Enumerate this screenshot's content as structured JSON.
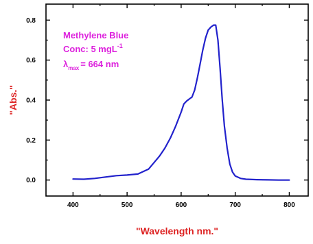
{
  "chart_data": {
    "type": "line",
    "title": "",
    "xlabel": "\"Wavelength nm.\"",
    "ylabel": "\"Abs.\"",
    "xlim": [
      350,
      835
    ],
    "ylim": [
      -0.08,
      0.88
    ],
    "x_ticks": [
      400,
      500,
      600,
      700,
      800
    ],
    "y_ticks": [
      0.0,
      0.2,
      0.4,
      0.6,
      0.8
    ],
    "x_tick_labels": [
      "400",
      "500",
      "600",
      "700",
      "800"
    ],
    "y_tick_labels": [
      "0.0",
      "0.2",
      "0.4",
      "0.6",
      "0.8"
    ],
    "grid": false,
    "annotation": {
      "line1": "Methylene Blue",
      "line2": "Conc: 5 mgL",
      "line2_sup": "-1",
      "line3_prefix": "λ",
      "line3_sub": "max",
      "line3_suffix": "= 664 nm"
    },
    "colors": {
      "line": "#2222cc",
      "label": "#dd2222",
      "annotation": "#dd22dd"
    },
    "series": [
      {
        "x": [
          400,
          420,
          440,
          460,
          480,
          500,
          520,
          540,
          560,
          570,
          580,
          590,
          600,
          605,
          610,
          615,
          620,
          625,
          630,
          635,
          640,
          645,
          650,
          655,
          660,
          664,
          668,
          672,
          676,
          680,
          685,
          690,
          695,
          700,
          710,
          720,
          740,
          760,
          780,
          800
        ],
        "y": [
          0.005,
          0.004,
          0.008,
          0.015,
          0.022,
          0.025,
          0.03,
          0.055,
          0.12,
          0.16,
          0.21,
          0.27,
          0.34,
          0.38,
          0.395,
          0.405,
          0.415,
          0.45,
          0.51,
          0.58,
          0.65,
          0.71,
          0.75,
          0.765,
          0.775,
          0.775,
          0.7,
          0.56,
          0.4,
          0.27,
          0.16,
          0.08,
          0.04,
          0.02,
          0.008,
          0.004,
          0.002,
          0.001,
          0.0,
          0.0
        ]
      }
    ]
  }
}
